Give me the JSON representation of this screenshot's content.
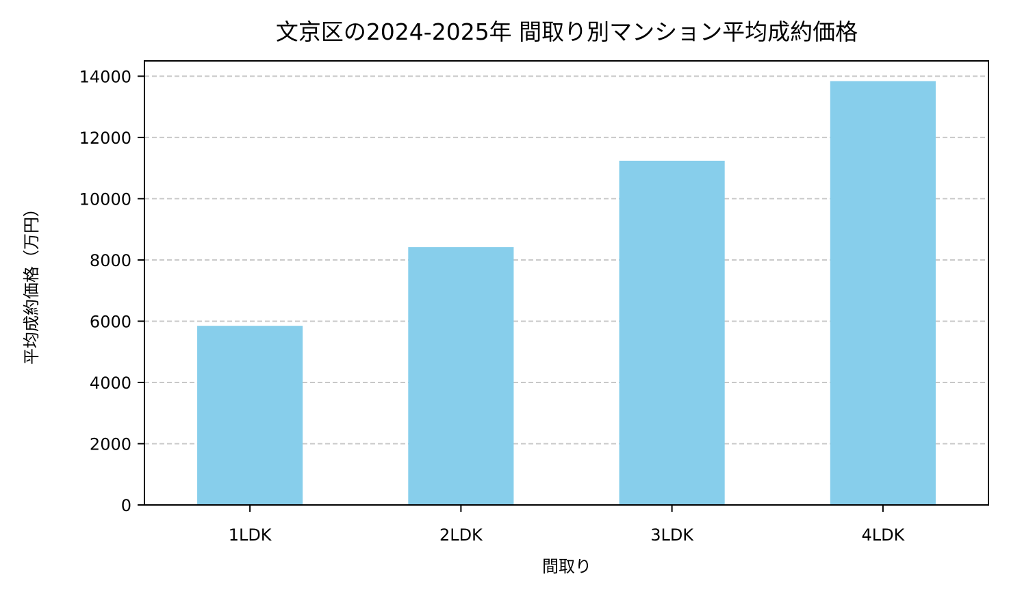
{
  "chart_data": {
    "type": "bar",
    "title": "文京区の2024-2025年 間取り別マンション平均成約価格",
    "xlabel": "間取り",
    "ylabel": "平均成約価格（万円）",
    "categories": [
      "1LDK",
      "2LDK",
      "3LDK",
      "4LDK"
    ],
    "values": [
      5850,
      8420,
      11240,
      13840
    ],
    "ylim": [
      0,
      14500
    ],
    "yticks": [
      0,
      2000,
      4000,
      6000,
      8000,
      10000,
      12000,
      14000
    ],
    "grid": "y-dashed",
    "legend": "none",
    "bar_color": "#87ceeb",
    "grid_color": "#c8c8c8"
  }
}
